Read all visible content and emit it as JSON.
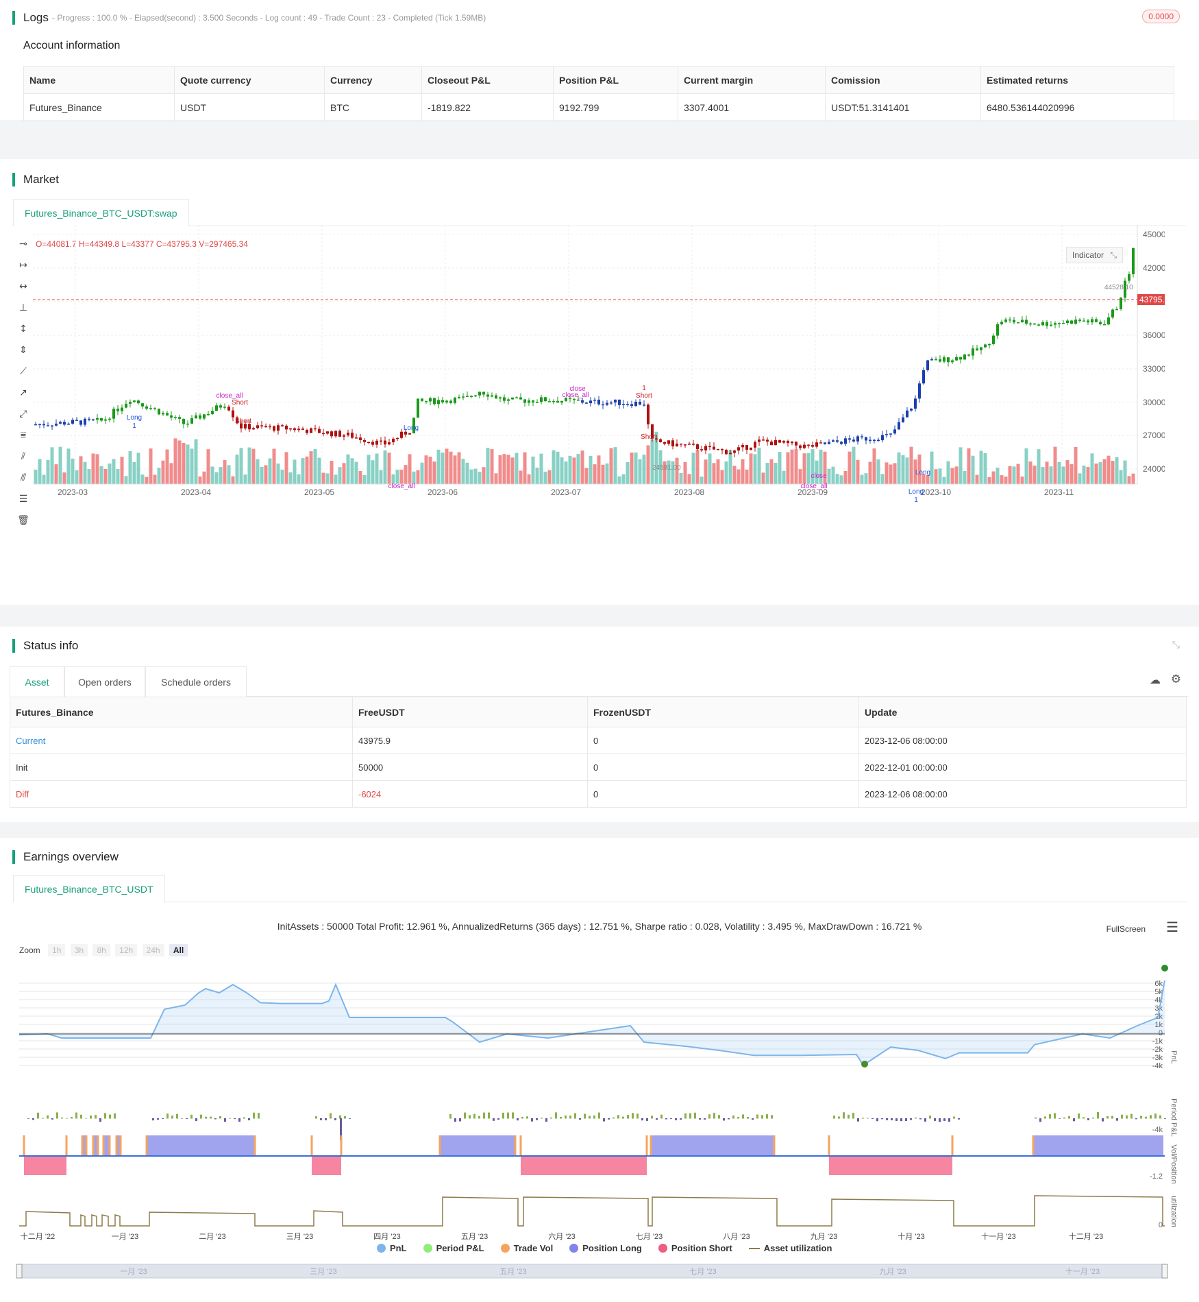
{
  "logs": {
    "title": "Logs",
    "status": "- Progress : 100.0 % - Elapsed(second) : 3.500  Seconds - Log count : 49 - Trade Count : 23 - Completed (Tick 1.59MB)",
    "badge": "0.0000"
  },
  "account": {
    "title": "Account information",
    "headers": [
      "Name",
      "Quote currency",
      "Currency",
      "Closeout P&L",
      "Position P&L",
      "Current margin",
      "Comission",
      "Estimated returns"
    ],
    "row": [
      "Futures_Binance",
      "USDT",
      "BTC",
      "-1819.822",
      "9192.799",
      "3307.4001",
      "USDT:51.3141401",
      "6480.536144020996"
    ]
  },
  "market": {
    "title": "Market",
    "tab": "Futures_Binance_BTC_USDT:swap",
    "ohlc": "O=44081.7 H=44349.8 L=43377 C=43795.3 V=297465.34",
    "indicator_btn": "Indicator",
    "last_price": "43795.30",
    "high_label": "44528.10",
    "low_label": "24581.00",
    "y_ticks": [
      "45000.00",
      "42000.00",
      "39000.00",
      "36000.00",
      "33000.00",
      "30000.00",
      "27000.00",
      "24000.00"
    ],
    "x_ticks": [
      "2023-03",
      "2023-04",
      "2023-05",
      "2023-06",
      "2023-07",
      "2023-08",
      "2023-09",
      "2023-10",
      "2023-11"
    ],
    "annotations": [
      "Long",
      "1",
      "close_all",
      "Short",
      "Short",
      "Long",
      "close_all",
      "close",
      "close_all",
      "Short",
      "1",
      "Short",
      "close",
      "close_all",
      "Long",
      "Long",
      "1"
    ]
  },
  "status": {
    "title": "Status info",
    "tabs": [
      "Asset",
      "Open orders",
      "Schedule orders"
    ],
    "headers": [
      "Futures_Binance",
      "FreeUSDT",
      "FrozenUSDT",
      "Update"
    ],
    "rows": [
      [
        "Current",
        "43975.9",
        "0",
        "2023-12-06 08:00:00"
      ],
      [
        "Init",
        "50000",
        "0",
        "2022-12-01 00:00:00"
      ],
      [
        "Diff",
        "-6024",
        "0",
        "2023-12-06 08:00:00"
      ]
    ]
  },
  "earnings": {
    "title": "Earnings overview",
    "tab": "Futures_Binance_BTC_USDT",
    "summary": "InitAssets : 50000 Total Profit: 12.961 %, AnnualizedReturns (365 days) : 12.751 %, Sharpe ratio : 0.028, Volatility : 3.495 %, MaxDrawDown : 16.721 %",
    "fullscreen": "FullScreen",
    "zoom_label": "Zoom",
    "zoom_buttons": [
      "1h",
      "3h",
      "8h",
      "12h",
      "24h",
      "All"
    ],
    "pnl_ticks": [
      "6k",
      "5k",
      "4k",
      "3k",
      "2k",
      "1k",
      "0",
      "-1k",
      "-2k",
      "-3k",
      "-4k"
    ],
    "axis_labels": [
      "PnL",
      "Period P&L",
      "Vol/Position",
      "utilization"
    ],
    "period_tick": "-4k",
    "vol_tick": "-1.2",
    "util_tick": "0",
    "x_ticks": [
      "十二月 '22",
      "一月 '23",
      "二月 '23",
      "三月 '23",
      "四月 '23",
      "五月 '23",
      "六月 '23",
      "七月 '23",
      "八月 '23",
      "九月 '23",
      "十月 '23",
      "十一月 '23",
      "十二月 '23"
    ],
    "nav_ticks": [
      "一月 '23",
      "三月 '23",
      "五月 '23",
      "七月 '23",
      "九月 '23",
      "十一月 '23"
    ],
    "legend": [
      {
        "label": "PnL",
        "color": "#7cb5ec"
      },
      {
        "label": "Period P&L",
        "color": "#90ed7d"
      },
      {
        "label": "Trade Vol",
        "color": "#f7a35c"
      },
      {
        "label": "Position Long",
        "color": "#8085e9"
      },
      {
        "label": "Position Short",
        "color": "#f15c80"
      },
      {
        "label": "Asset utilization",
        "color": "#8d7b4a"
      }
    ]
  }
}
